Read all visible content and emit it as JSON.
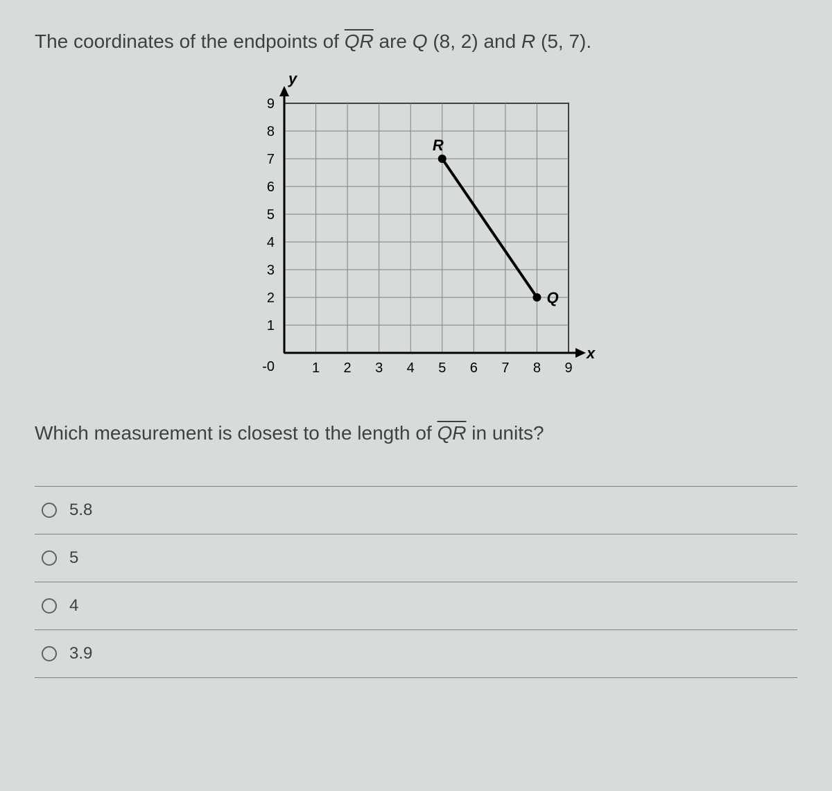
{
  "question": {
    "line1_prefix": "The coordinates of the endpoints of ",
    "segment_label": "QR",
    "line1_mid": " are ",
    "pointQ_label": "Q",
    "pointQ_coords": "(8, 2)",
    "line1_and": " and ",
    "pointR_label": "R",
    "pointR_coords": "(5, 7)",
    "line1_end": "."
  },
  "chart": {
    "type": "line-segment-on-grid",
    "xlabel": "x",
    "ylabel": "y",
    "xlim": [
      0,
      9
    ],
    "ylim": [
      0,
      9
    ],
    "xticks": [
      1,
      2,
      3,
      4,
      5,
      6,
      7,
      8,
      9
    ],
    "yticks": [
      1,
      2,
      3,
      4,
      5,
      6,
      7,
      8,
      9
    ],
    "origin_label": "-0",
    "grid_color": "#808080",
    "axis_color": "#000000",
    "background_color": "#d8dcd8",
    "tick_fontsize": 20,
    "axis_label_fontsize": 22,
    "line_color": "#000000",
    "line_width": 4,
    "point_radius": 6,
    "points": {
      "Q": {
        "x": 8,
        "y": 2,
        "label": "Q"
      },
      "R": {
        "x": 5,
        "y": 7,
        "label": "R"
      }
    }
  },
  "prompt": {
    "prefix": "Which measurement is closest to the length of ",
    "segment_label": "QR",
    "suffix": " in units?"
  },
  "options": [
    {
      "label": "5.8"
    },
    {
      "label": "5"
    },
    {
      "label": "4"
    },
    {
      "label": "3.9"
    }
  ]
}
